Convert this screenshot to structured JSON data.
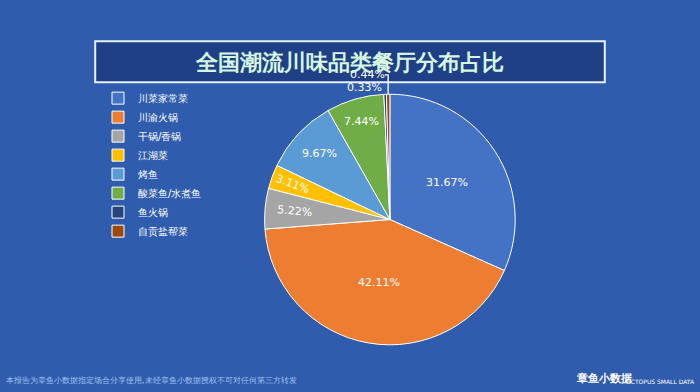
{
  "chart_data": {
    "type": "pie",
    "title": "全国潮流川味品类餐厅分布占比",
    "categories": [
      "川菜家常菜",
      "川渝火锅",
      "干锅/香锅",
      "江湖菜",
      "烤鱼",
      "酸菜鱼/水煮鱼",
      "鱼火锅",
      "自贡盐帮菜"
    ],
    "values": [
      31.67,
      42.11,
      5.22,
      3.11,
      9.67,
      7.44,
      0.33,
      0.44
    ],
    "value_labels": [
      "31.67%",
      "42.11%",
      "5.22%",
      "3.11%",
      "9.67%",
      "7.44%",
      "0.33%",
      "0.44%"
    ],
    "colors": [
      "#4472c4",
      "#ed7d31",
      "#a5a5a5",
      "#ffc000",
      "#5b9bd5",
      "#70ad47",
      "#264478",
      "#9e480e"
    ],
    "data_labels": true,
    "legend": "left"
  },
  "footer": "本报告为章鱼小数据指定场合分享使用,未经章鱼小数据授权不可对任何第三方转发",
  "branding": {
    "name": "章鱼小数据",
    "subtitle": "OCTOPUS SMALL DATA"
  }
}
